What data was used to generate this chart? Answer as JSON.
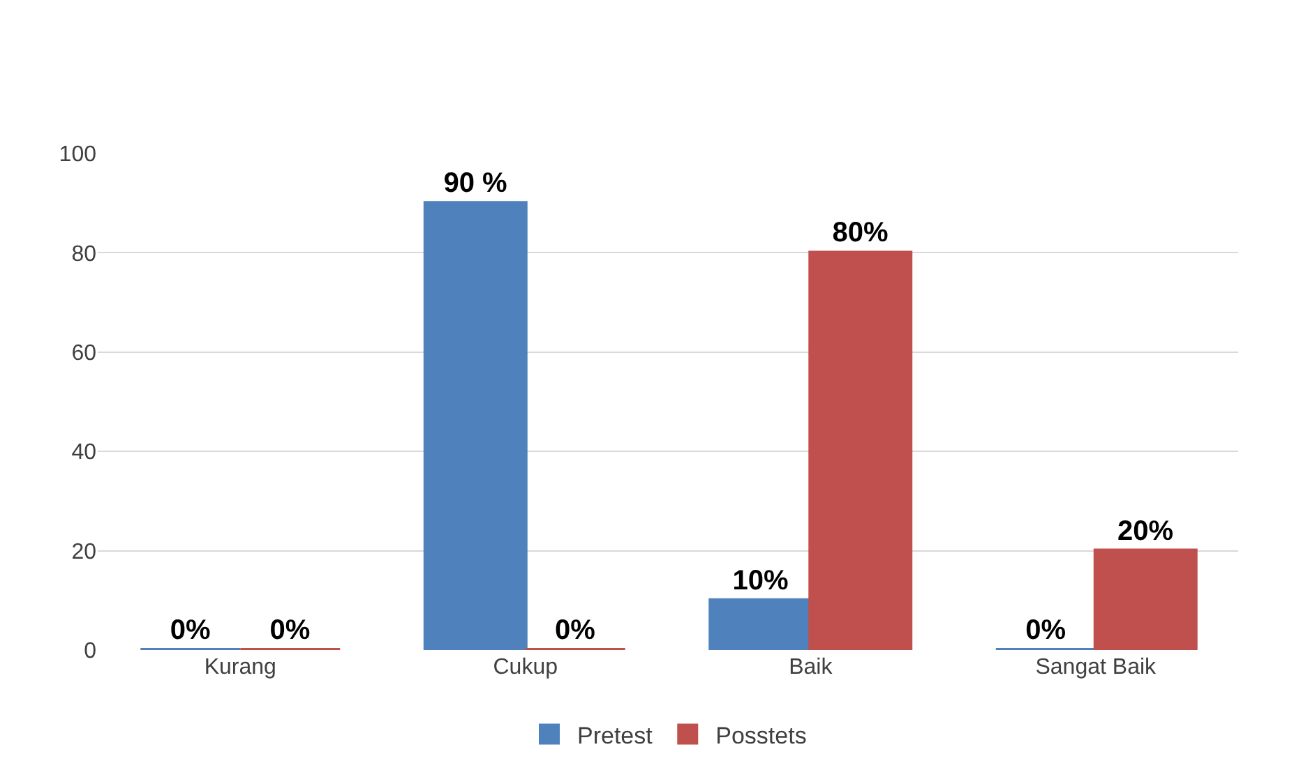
{
  "chart_data": {
    "type": "bar",
    "categories": [
      "Kurang",
      "Cukup",
      "Baik",
      "Sangat Baik"
    ],
    "series": [
      {
        "name": "Pretest",
        "color": "#4f81bd",
        "values": [
          0,
          90,
          10,
          0
        ],
        "value_labels": [
          "0%",
          "90 %",
          "10%",
          "0%"
        ]
      },
      {
        "name": "Posstets",
        "color": "#c0504d",
        "values": [
          0,
          0,
          80,
          20
        ],
        "value_labels": [
          "0%",
          "0%",
          "80%",
          "20%"
        ]
      }
    ],
    "ylim": [
      0,
      100
    ],
    "yticks": [
      0,
      20,
      40,
      60,
      80,
      100
    ],
    "grid": "y",
    "legend": "bottom"
  }
}
